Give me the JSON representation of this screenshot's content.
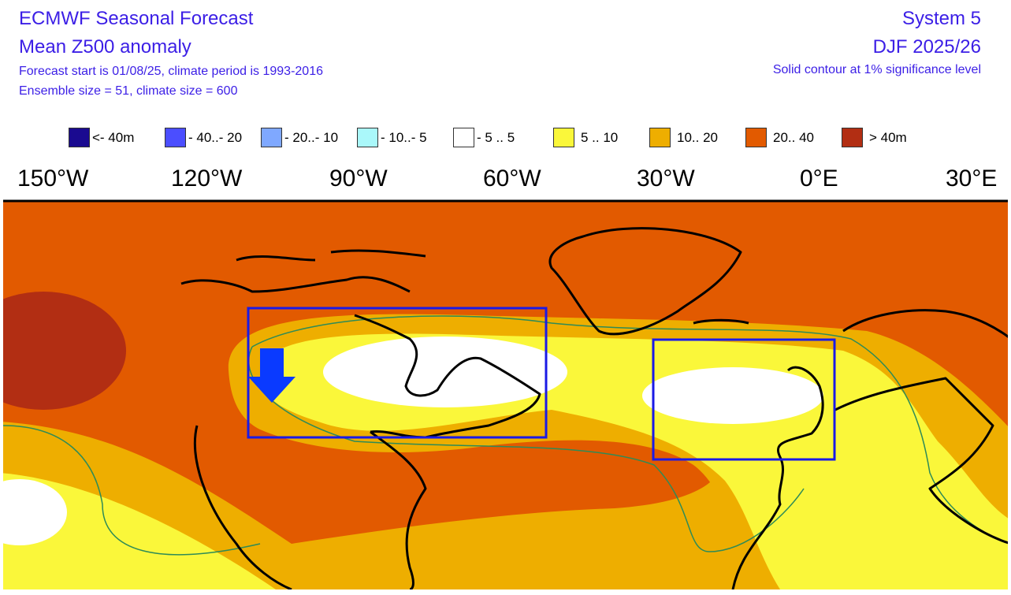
{
  "header": {
    "title": "ECMWF Seasonal Forecast",
    "subtitle": "Mean Z500 anomaly",
    "forecast_info": "Forecast start is 01/08/25, climate period is 1993-2016",
    "ensemble_info": "Ensemble size = 51, climate size = 600",
    "system": "System 5",
    "period": "DJF 2025/26",
    "significance": "Solid contour at 1% significance level",
    "text_color": "#3b1ee6"
  },
  "legend": [
    {
      "label": "<- 40m",
      "color": "#1a0a90"
    },
    {
      "label": "- 40..- 20",
      "color": "#4b4eff"
    },
    {
      "label": "- 20..- 10",
      "color": "#7fa8ff"
    },
    {
      "label": "- 10..- 5",
      "color": "#aaf8fa"
    },
    {
      "label": "- 5 .. 5",
      "color": "#ffffff"
    },
    {
      "label": "5 .. 10",
      "color": "#faf73a"
    },
    {
      "label": "10.. 20",
      "color": "#eeae00"
    },
    {
      "label": "20.. 40",
      "color": "#e25a00"
    },
    {
      "label": ">  40m",
      "color": "#b22e13"
    }
  ],
  "longitude_labels": [
    "150°W",
    "120°W",
    "90°W",
    "60°W",
    "30°W",
    "0°E",
    "30°E"
  ],
  "annotations": {
    "box_color": "#1a1ae6",
    "arrow_color": "#0a3aff",
    "arrow_direction": "down",
    "contour_color": "#2e8b57"
  }
}
